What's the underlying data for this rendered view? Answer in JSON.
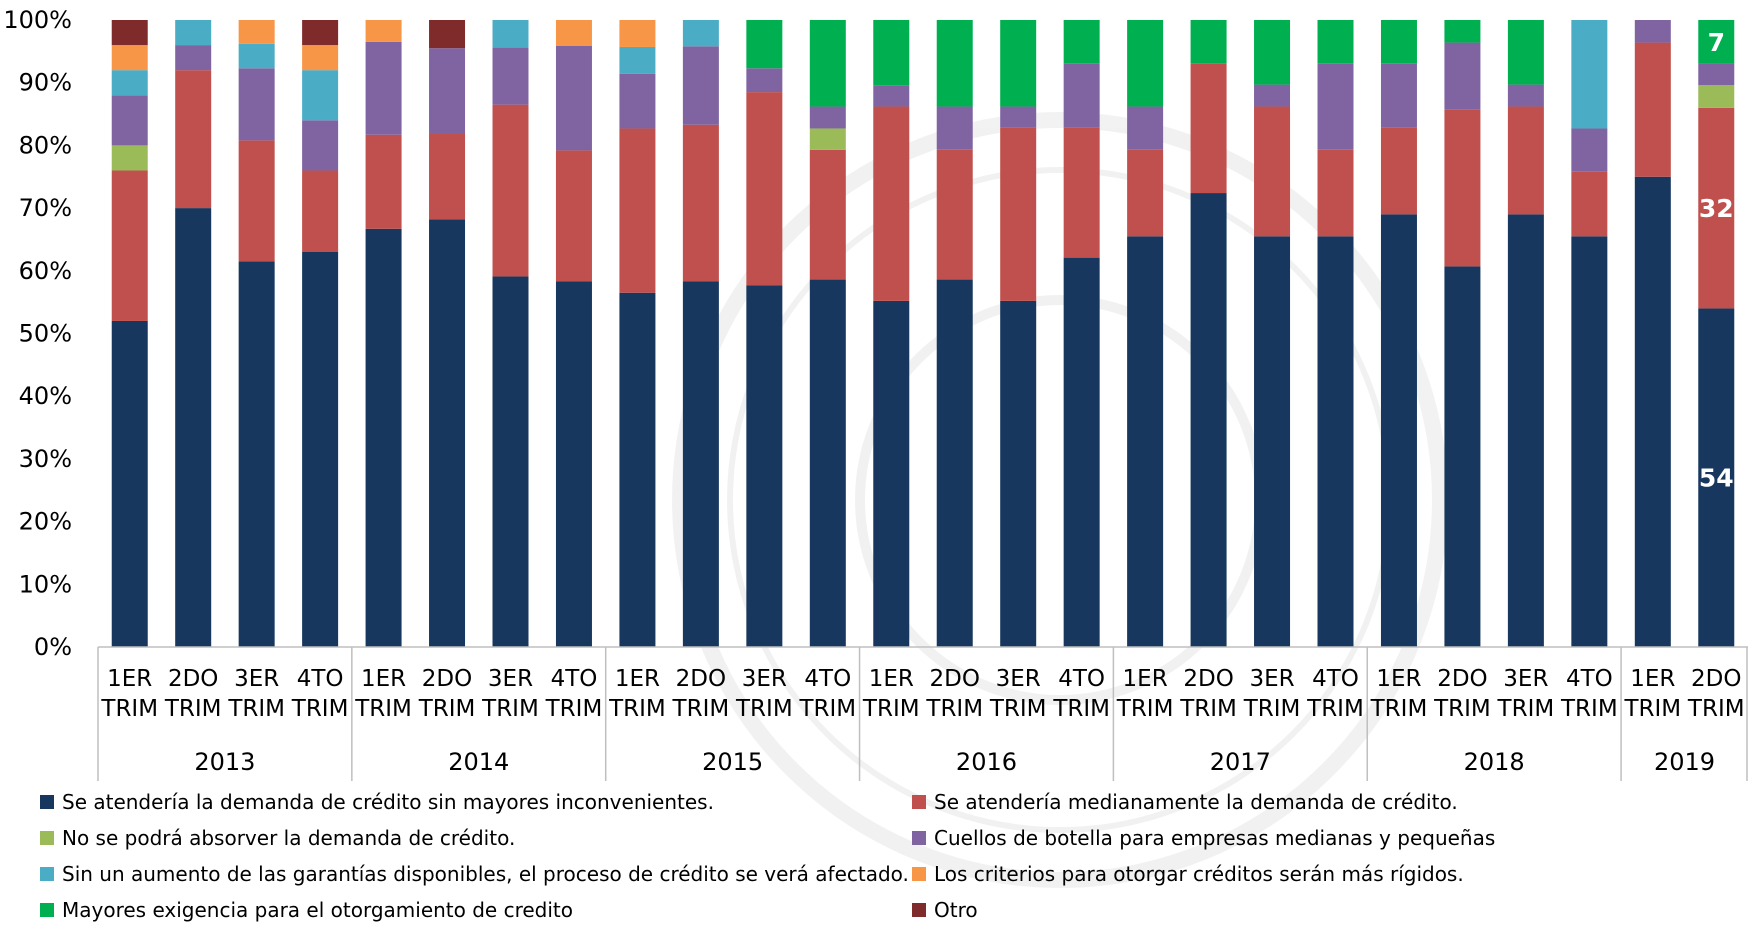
{
  "chart_data": {
    "type": "bar",
    "stacked": true,
    "y_axis": {
      "ylim": [
        0,
        100
      ],
      "tick_labels": [
        "0%",
        "10%",
        "20%",
        "30%",
        "40%",
        "50%",
        "60%",
        "70%",
        "80%",
        "90%",
        "100%"
      ]
    },
    "categories": [
      [
        "1ER",
        "TRIM"
      ],
      [
        "2DO",
        "TRIM"
      ],
      [
        "3ER",
        "TRIM"
      ],
      [
        "4TO",
        "TRIM"
      ],
      [
        "1ER",
        "TRIM"
      ],
      [
        "2DO",
        "TRIM"
      ],
      [
        "3ER",
        "TRIM"
      ],
      [
        "4TO",
        "TRIM"
      ],
      [
        "1ER",
        "TRIM"
      ],
      [
        "2DO",
        "TRIM"
      ],
      [
        "3ER",
        "TRIM"
      ],
      [
        "4TO",
        "TRIM"
      ],
      [
        "1ER",
        "TRIM"
      ],
      [
        "2DO",
        "TRIM"
      ],
      [
        "3ER",
        "TRIM"
      ],
      [
        "4TO",
        "TRIM"
      ],
      [
        "1ER",
        "TRIM"
      ],
      [
        "2DO",
        "TRIM"
      ],
      [
        "3ER",
        "TRIM"
      ],
      [
        "4TO",
        "TRIM"
      ],
      [
        "1ER",
        "TRIM"
      ],
      [
        "2DO",
        "TRIM"
      ],
      [
        "3ER",
        "TRIM"
      ],
      [
        "4TO",
        "TRIM"
      ],
      [
        "1ER",
        "TRIM"
      ],
      [
        "2DO",
        "TRIM"
      ]
    ],
    "groups": [
      {
        "label": "2013",
        "count": 4
      },
      {
        "label": "2014",
        "count": 4
      },
      {
        "label": "2015",
        "count": 4
      },
      {
        "label": "2016",
        "count": 4
      },
      {
        "label": "2017",
        "count": 4
      },
      {
        "label": "2018",
        "count": 4
      },
      {
        "label": "2019",
        "count": 2
      }
    ],
    "series": [
      {
        "name": "Se atendería la demanda de crédito sin mayores inconvenientes.",
        "color": "#17375e",
        "values": [
          52,
          70,
          61.5,
          63,
          66.7,
          68.2,
          59.1,
          58.3,
          56.5,
          58.3,
          57.7,
          58.6,
          55.2,
          58.6,
          55.2,
          62.1,
          65.5,
          72.4,
          65.5,
          65.5,
          69,
          60.7,
          69,
          65.5,
          75,
          54
        ]
      },
      {
        "name": "Se atendería medianamente la demanda de crédito.",
        "color": "#c0504d",
        "values": [
          24,
          22,
          19.3,
          13,
          15,
          13.7,
          27.4,
          20.9,
          26.2,
          25,
          30.8,
          20.7,
          31,
          20.7,
          27.6,
          20.7,
          13.8,
          20.7,
          20.7,
          13.8,
          13.8,
          25,
          17.2,
          10.3,
          21.4,
          32
        ]
      },
      {
        "name": "No se podrá absorver la demanda de crédito.",
        "color": "#9bbb59",
        "values": [
          4,
          0,
          0,
          0,
          0,
          0,
          0,
          0,
          0,
          0,
          0,
          3.4,
          0,
          0,
          0,
          0,
          0,
          0,
          0,
          0,
          0,
          0,
          0,
          0,
          0,
          3.6
        ]
      },
      {
        "name": "Cuellos de botella para empresas medianas y pequeñas",
        "color": "#8064a2",
        "values": [
          8,
          4,
          11.5,
          8,
          14.8,
          13.6,
          9.1,
          16.7,
          8.7,
          12.5,
          3.8,
          3.5,
          3.4,
          6.9,
          3.4,
          10.3,
          6.9,
          0,
          3.5,
          13.8,
          10.3,
          10.7,
          3.5,
          6.9,
          3.6,
          3.4
        ]
      },
      {
        "name": "Sin un aumento de las garantías disponibles, el proceso de crédito se verá afectado.",
        "color": "#4bacc6",
        "values": [
          4,
          4,
          3.9,
          8,
          0,
          0,
          4.4,
          0,
          4.3,
          4.2,
          0,
          0,
          0,
          0,
          0,
          0,
          0,
          0,
          0,
          0,
          0,
          0,
          0,
          17.3,
          0,
          0
        ]
      },
      {
        "name": "Los criterios para otorgar créditos serán más rígidos.",
        "color": "#f79646",
        "values": [
          4,
          0,
          3.8,
          4,
          3.5,
          0,
          0,
          4.1,
          4.3,
          0,
          0,
          0,
          0,
          0,
          0,
          0,
          0,
          0,
          0,
          0,
          0,
          0,
          0,
          0,
          0,
          0
        ]
      },
      {
        "name": "Mayores exigencia para el otorgamiento de credito",
        "color": "#00b050",
        "values": [
          0,
          0,
          0,
          0,
          0,
          0,
          0,
          0,
          0,
          0,
          7.7,
          13.8,
          10.4,
          13.8,
          13.8,
          6.9,
          13.8,
          6.9,
          10.3,
          6.9,
          6.9,
          3.6,
          10.3,
          0,
          0,
          7
        ]
      },
      {
        "name": "Otro",
        "color": "#7f2b2b",
        "values": [
          4,
          0,
          0,
          4,
          0,
          4.5,
          0,
          0,
          0,
          0,
          0,
          0,
          0,
          0,
          0,
          0,
          0,
          0,
          0,
          0,
          0,
          0,
          0,
          0,
          0,
          0
        ]
      }
    ],
    "data_labels": [
      {
        "category_index": 25,
        "series_index": 0,
        "text": "54"
      },
      {
        "category_index": 25,
        "series_index": 1,
        "text": "32"
      },
      {
        "category_index": 25,
        "series_index": 6,
        "text": "7"
      }
    ],
    "legend": {
      "placement": "bottom",
      "columns": 2
    }
  }
}
